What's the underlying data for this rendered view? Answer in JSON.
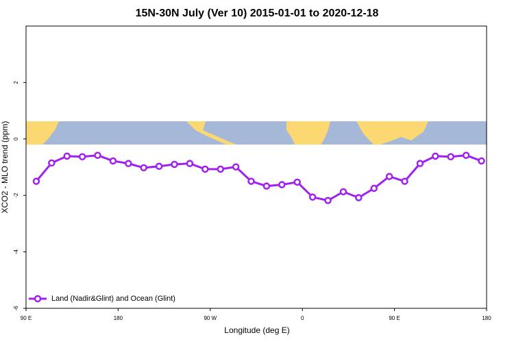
{
  "chart_data": {
    "type": "line",
    "title": "15N-30N July (Ver 10)   2015-01-01 to 2020-12-18",
    "x_label": "Longitude (deg E)",
    "y_label": "XCO2 - MLO trend (ppm)",
    "x": [
      100,
      115,
      130,
      145,
      160,
      175,
      190,
      205,
      220,
      235,
      250,
      265,
      280,
      295,
      310,
      325,
      340,
      355,
      370,
      385,
      400,
      415,
      430,
      445,
      460,
      475,
      490,
      505,
      520,
      535
    ],
    "series": [
      {
        "name": "Land (Nadir&Glint) and Ocean (Glint)",
        "color": "#a020f0",
        "values": [
          -1.5,
          -0.85,
          -0.61,
          -0.63,
          -0.58,
          -0.78,
          -0.87,
          -1.02,
          -0.97,
          -0.9,
          -0.87,
          -1.07,
          -1.07,
          -0.99,
          -1.5,
          -1.67,
          -1.62,
          -1.53,
          -2.06,
          -2.18,
          -1.87,
          -2.08,
          -1.75,
          -1.33,
          -1.5,
          -0.87,
          -0.61,
          -0.63,
          -0.58,
          -0.78
        ]
      }
    ],
    "xlim": [
      90,
      540
    ],
    "xticks": [
      {
        "value": 90,
        "label": "90 E"
      },
      180,
      {
        "value": 270,
        "label": "90 W"
      },
      {
        "value": 360,
        "label": "0"
      },
      {
        "value": 450,
        "label": "90 E"
      },
      {
        "value": 540,
        "label": "180"
      }
    ],
    "ylim": [
      -6,
      4
    ],
    "yticks": [
      -6,
      -4,
      -2,
      0,
      2
    ],
    "legend": "bottomleft"
  }
}
